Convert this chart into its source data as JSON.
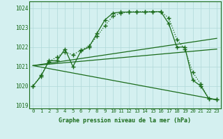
{
  "x": [
    0,
    1,
    2,
    3,
    4,
    5,
    6,
    7,
    8,
    9,
    10,
    11,
    12,
    13,
    14,
    15,
    16,
    17,
    18,
    19,
    20,
    21,
    22,
    23
  ],
  "line1": [
    1020.0,
    1020.5,
    1021.3,
    1021.3,
    1021.9,
    1021.0,
    1021.8,
    1022.0,
    1022.7,
    1023.4,
    1023.75,
    1023.8,
    1023.8,
    1023.8,
    1023.8,
    1023.82,
    1023.82,
    1023.2,
    1022.0,
    1022.0,
    1020.3,
    1020.0,
    1019.35,
    1019.3
  ],
  "line2": [
    1020.0,
    1020.55,
    1021.25,
    1021.5,
    1021.75,
    1021.6,
    1021.85,
    1022.05,
    1022.55,
    1023.1,
    1023.6,
    1023.75,
    1023.8,
    1023.82,
    1023.82,
    1023.82,
    1023.82,
    1023.5,
    1022.4,
    1021.9,
    1020.7,
    1020.1,
    1019.35,
    1019.3
  ],
  "line3_x": [
    0,
    23
  ],
  "line3_y": [
    1021.05,
    1022.45
  ],
  "line4_x": [
    0,
    23
  ],
  "line4_y": [
    1021.05,
    1019.3
  ],
  "line5_x": [
    0,
    23
  ],
  "line5_y": [
    1021.05,
    1021.9
  ],
  "ylim": [
    1018.85,
    1024.35
  ],
  "xlim": [
    -0.5,
    23.5
  ],
  "yticks": [
    1019,
    1020,
    1021,
    1022,
    1023,
    1024
  ],
  "xticks": [
    0,
    1,
    2,
    3,
    4,
    5,
    6,
    7,
    8,
    9,
    10,
    11,
    12,
    13,
    14,
    15,
    16,
    17,
    18,
    19,
    20,
    21,
    22,
    23
  ],
  "xlabel": "Graphe pression niveau de la mer (hPa)",
  "line_color": "#1a6b1a",
  "bg_color": "#d4f0f0",
  "grid_color": "#b0d8d8",
  "grid_minor_color": "#c8e8e8"
}
